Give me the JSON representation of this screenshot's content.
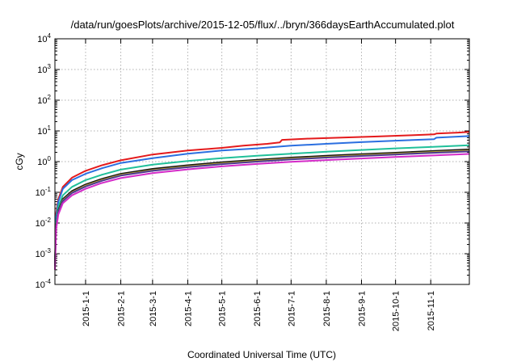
{
  "chart_data": {
    "type": "line",
    "title": "/data/run/goesPlots/archive/2015-12-05/flux/../bryn/366daysEarthAccumulated.plot",
    "xlabel": "Coordinated Universal Time (UTC)",
    "ylabel": "cGy",
    "yscale": "log",
    "ylim": [
      0.0001,
      10000
    ],
    "xlim": [
      "2014-12-05",
      "2015-12-05"
    ],
    "grid": true,
    "y_ticks": [
      {
        "base": "10",
        "exp": "-4",
        "value": 0.0001
      },
      {
        "base": "10",
        "exp": "-3",
        "value": 0.001
      },
      {
        "base": "10",
        "exp": "-2",
        "value": 0.01
      },
      {
        "base": "10",
        "exp": "-1",
        "value": 0.1
      },
      {
        "base": "10",
        "exp": "0",
        "value": 1
      },
      {
        "base": "10",
        "exp": "1",
        "value": 10
      },
      {
        "base": "10",
        "exp": "2",
        "value": 100
      },
      {
        "base": "10",
        "exp": "3",
        "value": 1000
      },
      {
        "base": "10",
        "exp": "4",
        "value": 10000
      }
    ],
    "x_ticks": [
      "2015-1-1",
      "2015-2-1",
      "2015-3-1",
      "2015-4-1",
      "2015-5-1",
      "2015-6-1",
      "2015-7-1",
      "2015-8-1",
      "2015-9-1",
      "2015-10-1",
      "2015-11-1"
    ],
    "series": [
      {
        "color": "#e41a1c",
        "x": [
          "2014-12-05",
          "2014-12-06",
          "2014-12-08",
          "2014-12-12",
          "2014-12-20",
          "2015-01-01",
          "2015-01-15",
          "2015-02-01",
          "2015-03-01",
          "2015-04-01",
          "2015-05-01",
          "2015-05-20",
          "2015-06-10",
          "2015-06-21",
          "2015-06-23",
          "2015-07-15",
          "2015-08-15",
          "2015-09-15",
          "2015-10-15",
          "2015-11-04",
          "2015-11-06",
          "2015-11-25",
          "2015-12-05"
        ],
        "y": [
          0.0004,
          0.02,
          0.06,
          0.15,
          0.3,
          0.5,
          0.75,
          1.1,
          1.7,
          2.3,
          2.8,
          3.3,
          3.8,
          4.2,
          5.1,
          5.6,
          6.1,
          6.6,
          7.2,
          7.7,
          8.2,
          8.8,
          9.3
        ]
      },
      {
        "color": "#2b6fe0",
        "x": [
          "2014-12-05",
          "2014-12-06",
          "2014-12-08",
          "2014-12-12",
          "2014-12-20",
          "2015-01-01",
          "2015-01-15",
          "2015-02-01",
          "2015-03-01",
          "2015-04-01",
          "2015-05-01",
          "2015-06-01",
          "2015-07-01",
          "2015-08-01",
          "2015-09-01",
          "2015-10-01",
          "2015-11-04",
          "2015-11-06",
          "2015-12-05"
        ],
        "y": [
          0.0004,
          0.015,
          0.05,
          0.13,
          0.25,
          0.4,
          0.6,
          0.9,
          1.3,
          1.8,
          2.3,
          2.7,
          3.3,
          3.8,
          4.3,
          4.8,
          5.4,
          6.0,
          6.8
        ]
      },
      {
        "color": "#20c09a",
        "x": [
          "2014-12-05",
          "2014-12-06",
          "2014-12-08",
          "2014-12-12",
          "2014-12-20",
          "2015-01-01",
          "2015-01-15",
          "2015-02-01",
          "2015-03-01",
          "2015-04-01",
          "2015-05-01",
          "2015-06-01",
          "2015-07-01",
          "2015-08-01",
          "2015-09-01",
          "2015-10-01",
          "2015-11-01",
          "2015-12-05"
        ],
        "y": [
          0.0004,
          0.01,
          0.035,
          0.08,
          0.15,
          0.25,
          0.37,
          0.55,
          0.8,
          1.05,
          1.3,
          1.55,
          1.8,
          2.1,
          2.4,
          2.7,
          3.0,
          3.4
        ]
      },
      {
        "color": "#111111",
        "x": [
          "2014-12-05",
          "2014-12-06",
          "2014-12-08",
          "2014-12-12",
          "2014-12-20",
          "2015-01-01",
          "2015-01-15",
          "2015-02-01",
          "2015-03-01",
          "2015-04-01",
          "2015-05-01",
          "2015-06-01",
          "2015-07-01",
          "2015-08-01",
          "2015-09-01",
          "2015-10-01",
          "2015-11-01",
          "2015-12-05"
        ],
        "y": [
          0.0004,
          0.008,
          0.026,
          0.06,
          0.11,
          0.18,
          0.27,
          0.4,
          0.58,
          0.76,
          0.95,
          1.15,
          1.35,
          1.55,
          1.75,
          1.95,
          2.2,
          2.5
        ]
      },
      {
        "color": "#b5a23a",
        "x": [
          "2014-12-05",
          "2014-12-06",
          "2014-12-08",
          "2014-12-12",
          "2014-12-20",
          "2015-01-01",
          "2015-01-15",
          "2015-02-01",
          "2015-03-01",
          "2015-04-01",
          "2015-05-01",
          "2015-06-01",
          "2015-07-01",
          "2015-08-01",
          "2015-09-01",
          "2015-10-01",
          "2015-11-01",
          "2015-12-05"
        ],
        "y": [
          0.0004,
          0.0075,
          0.024,
          0.055,
          0.1,
          0.165,
          0.25,
          0.37,
          0.53,
          0.7,
          0.88,
          1.06,
          1.25,
          1.43,
          1.62,
          1.8,
          2.03,
          2.3
        ]
      },
      {
        "color": "#4b3a8f",
        "x": [
          "2014-12-05",
          "2014-12-06",
          "2014-12-08",
          "2014-12-12",
          "2014-12-20",
          "2015-01-01",
          "2015-01-15",
          "2015-02-01",
          "2015-03-01",
          "2015-04-01",
          "2015-05-01",
          "2015-06-01",
          "2015-07-01",
          "2015-08-01",
          "2015-09-01",
          "2015-10-01",
          "2015-11-01",
          "2015-12-05"
        ],
        "y": [
          0.0004,
          0.0072,
          0.023,
          0.052,
          0.095,
          0.155,
          0.235,
          0.35,
          0.5,
          0.66,
          0.83,
          1.0,
          1.18,
          1.35,
          1.53,
          1.7,
          1.92,
          2.15
        ]
      },
      {
        "color": "#d42bc8",
        "x": [
          "2014-12-05",
          "2014-12-06",
          "2014-12-08",
          "2014-12-12",
          "2014-12-20",
          "2015-01-01",
          "2015-01-15",
          "2015-02-01",
          "2015-03-01",
          "2015-04-01",
          "2015-05-01",
          "2015-06-01",
          "2015-07-01",
          "2015-08-01",
          "2015-09-01",
          "2015-10-01",
          "2015-11-01",
          "2015-12-05"
        ],
        "y": [
          0.0003,
          0.006,
          0.019,
          0.044,
          0.08,
          0.13,
          0.2,
          0.29,
          0.42,
          0.56,
          0.7,
          0.84,
          0.98,
          1.12,
          1.27,
          1.42,
          1.58,
          1.78
        ]
      }
    ]
  }
}
